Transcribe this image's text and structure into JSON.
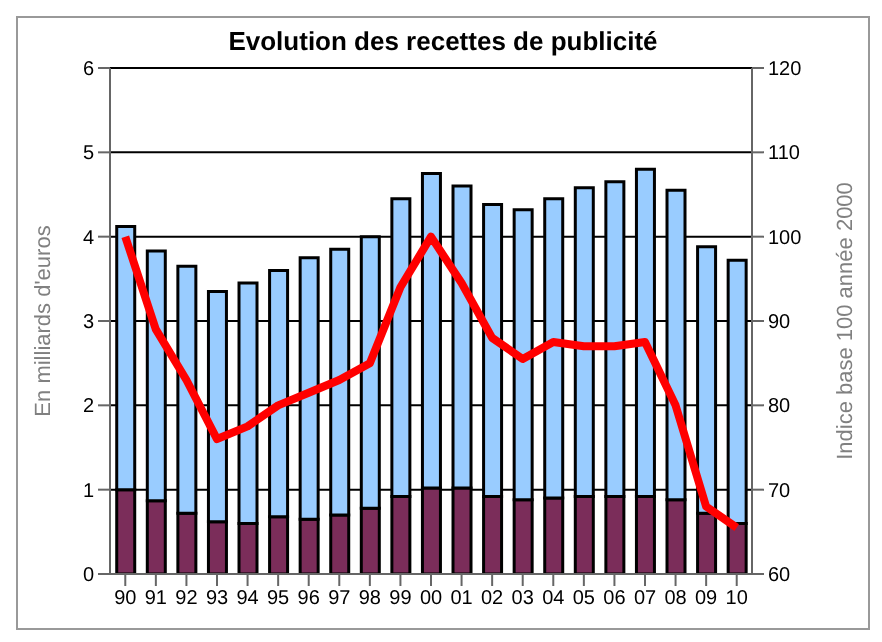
{
  "chart_data": {
    "type": "bar",
    "title": "Evolution des recettes de publicité",
    "ylabel": "En milliards d'euros",
    "y2label": "Indice base 100 année 2000",
    "categories": [
      "90",
      "91",
      "92",
      "93",
      "94",
      "95",
      "96",
      "97",
      "98",
      "99",
      "00",
      "01",
      "02",
      "03",
      "04",
      "05",
      "06",
      "07",
      "08",
      "09",
      "10"
    ],
    "stacked": true,
    "series": [
      {
        "color": "#7b2d5a",
        "values": [
          1.0,
          0.87,
          0.72,
          0.62,
          0.6,
          0.68,
          0.65,
          0.7,
          0.78,
          0.92,
          1.02,
          1.02,
          0.92,
          0.88,
          0.9,
          0.92,
          0.92,
          0.92,
          0.88,
          0.72,
          0.6
        ]
      },
      {
        "color": "#99ccff",
        "values": [
          3.12,
          2.96,
          2.93,
          2.73,
          2.85,
          2.92,
          3.1,
          3.15,
          3.22,
          3.53,
          3.73,
          3.58,
          3.46,
          3.44,
          3.55,
          3.66,
          3.73,
          3.88,
          3.67,
          3.16,
          3.12
        ]
      },
      {
        "type": "line",
        "axis": "y2",
        "color": "#ff0000",
        "values": [
          100,
          89,
          83,
          76,
          77.5,
          80,
          81.5,
          83,
          85,
          94,
          100,
          94.5,
          88,
          85.5,
          87.5,
          87,
          87,
          87.5,
          80,
          68,
          65.5
        ]
      }
    ],
    "ylim": [
      0,
      6
    ],
    "yticks": [
      0,
      1,
      2,
      3,
      4,
      5,
      6
    ],
    "y2lim": [
      60,
      120
    ],
    "y2ticks": [
      60,
      70,
      80,
      90,
      100,
      110,
      120
    ],
    "grid": "y",
    "marker": "none",
    "line_style": "solid"
  }
}
